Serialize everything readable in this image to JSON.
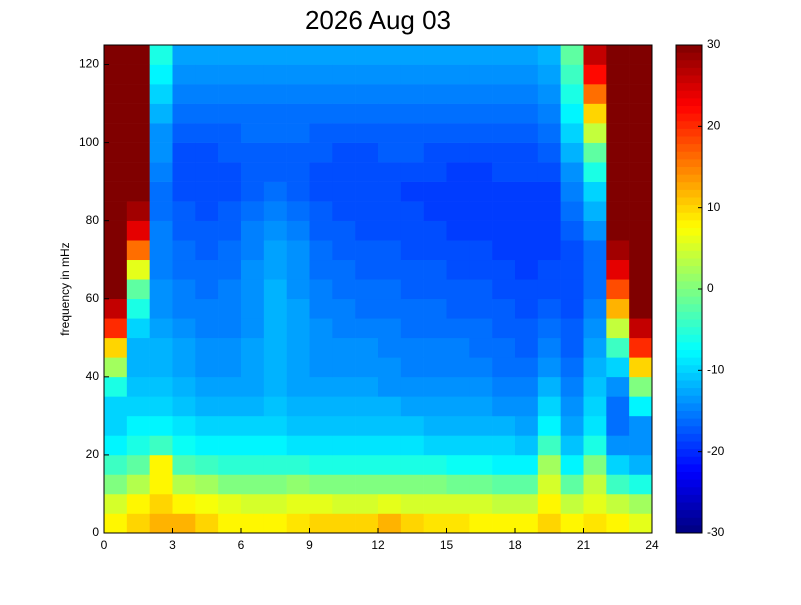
{
  "chart_data": {
    "type": "heatmap",
    "title": "2026 Aug 03",
    "y_label": "frequency in mHz",
    "colormap": "jet",
    "xbins": [
      0,
      1,
      2,
      3,
      4,
      5,
      6,
      7,
      8,
      9,
      10,
      11,
      12,
      13,
      14,
      15,
      16,
      17,
      18,
      19,
      20,
      21,
      22,
      23,
      24
    ],
    "ybins": [
      0,
      5,
      10,
      15,
      20,
      25,
      30,
      35,
      40,
      45,
      50,
      55,
      60,
      65,
      70,
      75,
      80,
      85,
      90,
      95,
      100,
      105,
      110,
      115,
      120,
      125
    ],
    "values": [
      [
        8,
        10,
        12,
        12,
        10,
        8,
        8,
        8,
        9,
        10,
        10,
        10,
        12,
        10,
        9,
        9,
        8,
        8,
        8,
        10,
        8,
        9,
        8,
        6
      ],
      [
        5,
        8,
        10,
        8,
        7,
        6,
        5,
        5,
        6,
        6,
        5,
        5,
        6,
        5,
        5,
        5,
        5,
        4,
        4,
        8,
        4,
        6,
        4,
        2
      ],
      [
        0,
        3,
        8,
        3,
        2,
        0,
        0,
        0,
        1,
        0,
        0,
        0,
        0,
        0,
        0,
        -1,
        -1,
        -2,
        -2,
        5,
        -2,
        4,
        -4,
        -6
      ],
      [
        -4,
        -2,
        8,
        -3,
        -4,
        -5,
        -5,
        -5,
        -5,
        -6,
        -6,
        -6,
        -6,
        -6,
        -6,
        -7,
        -7,
        -8,
        -8,
        2,
        -8,
        0,
        -10,
        -12
      ],
      [
        -8,
        -6,
        -4,
        -7,
        -8,
        -8,
        -8,
        -8,
        -9,
        -9,
        -9,
        -9,
        -9,
        -9,
        -10,
        -10,
        -10,
        -10,
        -11,
        -4,
        -11,
        -6,
        -14,
        -14
      ],
      [
        -10,
        -8,
        -8,
        -9,
        -10,
        -10,
        -10,
        -10,
        -11,
        -11,
        -11,
        -11,
        -11,
        -11,
        -12,
        -12,
        -12,
        -12,
        -13,
        -8,
        -13,
        -9,
        -16,
        -14
      ],
      [
        -10,
        -10,
        -10,
        -11,
        -12,
        -12,
        -12,
        -11,
        -12,
        -12,
        -12,
        -12,
        -12,
        -13,
        -13,
        -13,
        -13,
        -14,
        -14,
        -10,
        -14,
        -10,
        -16,
        -8
      ],
      [
        -6,
        -11,
        -11,
        -12,
        -13,
        -13,
        -13,
        -12,
        -13,
        -13,
        -13,
        -13,
        -14,
        -14,
        -14,
        -14,
        -14,
        -15,
        -15,
        -12,
        -15,
        -11,
        -14,
        0
      ],
      [
        2,
        -12,
        -12,
        -13,
        -14,
        -14,
        -13,
        -12,
        -13,
        -14,
        -14,
        -14,
        -14,
        -15,
        -15,
        -15,
        -15,
        -16,
        -16,
        -14,
        -16,
        -12,
        -10,
        10
      ],
      [
        10,
        -12,
        -12,
        -13,
        -14,
        -14,
        -13,
        -12,
        -13,
        -14,
        -14,
        -14,
        -15,
        -15,
        -15,
        -15,
        -16,
        -16,
        -17,
        -15,
        -17,
        -13,
        -4,
        20
      ],
      [
        20,
        -10,
        -13,
        -14,
        -15,
        -15,
        -14,
        -12,
        -13,
        -14,
        -15,
        -15,
        -15,
        -16,
        -16,
        -16,
        -16,
        -17,
        -17,
        -16,
        -17,
        -14,
        4,
        26
      ],
      [
        26,
        -6,
        -14,
        -15,
        -15,
        -15,
        -14,
        -12,
        -13,
        -15,
        -15,
        -16,
        -16,
        -16,
        -16,
        -17,
        -17,
        -17,
        -18,
        -17,
        -18,
        -15,
        12,
        30
      ],
      [
        30,
        -2,
        -14,
        -15,
        -16,
        -15,
        -14,
        -12,
        -14,
        -15,
        -16,
        -16,
        -16,
        -17,
        -17,
        -17,
        -17,
        -18,
        -18,
        -18,
        -18,
        -16,
        18,
        30
      ],
      [
        30,
        6,
        -15,
        -16,
        -16,
        -16,
        -14,
        -13,
        -14,
        -16,
        -16,
        -17,
        -17,
        -17,
        -17,
        -18,
        -18,
        -18,
        -19,
        -18,
        -18,
        -16,
        24,
        30
      ],
      [
        30,
        16,
        -15,
        -16,
        -17,
        -16,
        -15,
        -13,
        -14,
        -16,
        -17,
        -17,
        -17,
        -18,
        -18,
        -18,
        -18,
        -19,
        -19,
        -19,
        -18,
        -16,
        28,
        30
      ],
      [
        30,
        24,
        -15,
        -17,
        -17,
        -17,
        -15,
        -14,
        -15,
        -17,
        -17,
        -18,
        -18,
        -18,
        -18,
        -19,
        -19,
        -19,
        -19,
        -19,
        -17,
        -14,
        30,
        30
      ],
      [
        30,
        28,
        -16,
        -17,
        -18,
        -17,
        -16,
        -15,
        -16,
        -17,
        -18,
        -18,
        -18,
        -18,
        -19,
        -19,
        -19,
        -19,
        -19,
        -19,
        -16,
        -12,
        30,
        30
      ],
      [
        30,
        30,
        -16,
        -18,
        -18,
        -18,
        -17,
        -16,
        -17,
        -18,
        -18,
        -18,
        -18,
        -19,
        -19,
        -19,
        -19,
        -19,
        -19,
        -19,
        -15,
        -10,
        30,
        30
      ],
      [
        30,
        30,
        -15,
        -18,
        -18,
        -18,
        -17,
        -17,
        -17,
        -18,
        -18,
        -18,
        -18,
        -18,
        -18,
        -19,
        -19,
        -18,
        -18,
        -18,
        -14,
        -6,
        30,
        30
      ],
      [
        30,
        30,
        -14,
        -18,
        -18,
        -17,
        -17,
        -17,
        -17,
        -17,
        -18,
        -18,
        -17,
        -17,
        -18,
        -18,
        -18,
        -18,
        -18,
        -17,
        -12,
        -2,
        30,
        30
      ],
      [
        30,
        30,
        -14,
        -17,
        -17,
        -17,
        -16,
        -16,
        -16,
        -17,
        -17,
        -17,
        -17,
        -17,
        -17,
        -17,
        -17,
        -17,
        -17,
        -16,
        -10,
        4,
        30,
        30
      ],
      [
        30,
        30,
        -12,
        -16,
        -16,
        -16,
        -16,
        -16,
        -16,
        -16,
        -16,
        -16,
        -16,
        -16,
        -16,
        -16,
        -16,
        -16,
        -16,
        -15,
        -8,
        10,
        30,
        30
      ],
      [
        30,
        30,
        -10,
        -15,
        -15,
        -15,
        -15,
        -15,
        -15,
        -15,
        -15,
        -15,
        -15,
        -15,
        -15,
        -15,
        -15,
        -15,
        -15,
        -14,
        -6,
        16,
        30,
        30
      ],
      [
        30,
        30,
        -8,
        -14,
        -14,
        -14,
        -14,
        -14,
        -14,
        -14,
        -14,
        -14,
        -14,
        -14,
        -14,
        -14,
        -14,
        -14,
        -14,
        -13,
        -4,
        22,
        30,
        30
      ],
      [
        30,
        30,
        -6,
        -13,
        -13,
        -13,
        -13,
        -13,
        -13,
        -13,
        -13,
        -13,
        -13,
        -13,
        -13,
        -13,
        -13,
        -13,
        -13,
        -12,
        -2,
        26,
        30,
        30
      ]
    ],
    "xlim": [
      0,
      24
    ],
    "xticks": [
      0,
      3,
      6,
      9,
      12,
      15,
      18,
      21,
      24
    ],
    "ylim": [
      0,
      125
    ],
    "yticks": [
      0,
      20,
      40,
      60,
      80,
      100,
      120
    ],
    "clim": [
      -30,
      30
    ],
    "cticks": [
      -30,
      -20,
      -10,
      0,
      10,
      20,
      30
    ]
  }
}
